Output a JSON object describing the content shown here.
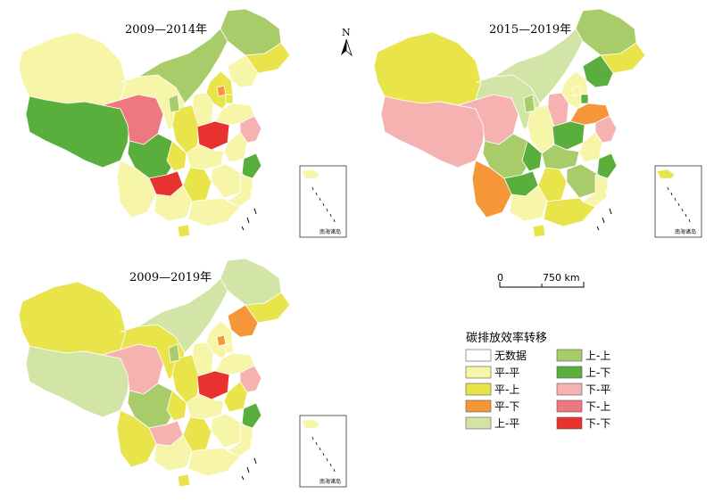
{
  "maps": [
    {
      "title": "2009—2014年",
      "inset_label": "南海诸岛",
      "provinces": {
        "xinjiang": "pp",
        "tibet": "us",
        "qinghai": "dn",
        "gansu": "pp",
        "inner_mongolia": "uu",
        "heilongjiang": "uu",
        "jilin": "pu",
        "liaoning": "pp",
        "hebei": "pu",
        "beijing": "pd",
        "tianjin": "pu",
        "shanxi": "pp",
        "shaanxi": "pu",
        "ningxia": "uu",
        "henan": "dd",
        "shandong": "pp",
        "sichuan": "us",
        "chongqing": "pu",
        "hubei": "pp",
        "anhui": "pp",
        "jiangsu": "du",
        "zhejiang": "us",
        "guizhou": "dd",
        "hunan": "pu",
        "jiangxi": "pp",
        "fujian": "pp",
        "yunnan": "pp",
        "guangxi": "pp",
        "guangdong": "pp",
        "hainan": "pu",
        "taiwan": "nd"
      }
    },
    {
      "title": "2015—2019年",
      "inset_label": "南海诸岛",
      "provinces": {
        "xinjiang": "pu",
        "tibet": "du",
        "qinghai": "du",
        "gansu": "up",
        "inner_mongolia": "up",
        "heilongjiang": "uu",
        "jilin": "pu",
        "liaoning": "us",
        "hebei": "pp",
        "beijing": "pp",
        "tianjin": "us",
        "shanxi": "du",
        "shaanxi": "pp",
        "ningxia": "uu",
        "henan": "us",
        "shandong": "pd",
        "sichuan": "uu",
        "chongqing": "us",
        "hubei": "uu",
        "anhui": "pp",
        "jiangsu": "du",
        "zhejiang": "us",
        "guizhou": "us",
        "hunan": "pu",
        "jiangxi": "uu",
        "fujian": "pp",
        "yunnan": "pd",
        "guangxi": "pp",
        "guangdong": "pu",
        "hainan": "pu",
        "taiwan": "nd"
      }
    },
    {
      "title": "2009—2019年",
      "inset_label": "南海诸岛",
      "provinces": {
        "xinjiang": "pu",
        "tibet": "up",
        "qinghai": "du",
        "gansu": "pu",
        "inner_mongolia": "up",
        "heilongjiang": "up",
        "jilin": "pu",
        "liaoning": "pd",
        "hebei": "pp",
        "beijing": "pd",
        "tianjin": "pp",
        "shanxi": "pp",
        "shaanxi": "pu",
        "ningxia": "uu",
        "henan": "dd",
        "shandong": "pp",
        "sichuan": "uu",
        "chongqing": "pu",
        "hubei": "pp",
        "anhui": "pu",
        "jiangsu": "du",
        "zhejiang": "us",
        "guizhou": "du",
        "hunan": "pu",
        "jiangxi": "pp",
        "fujian": "pp",
        "yunnan": "pu",
        "guangxi": "pp",
        "guangdong": "pp",
        "hainan": "pu",
        "taiwan": "nd"
      }
    }
  ],
  "north_arrow": {
    "label": "N"
  },
  "scale_bar": {
    "start_label": "0",
    "end_label": "750 km"
  },
  "legend": {
    "title": "碳排放效率转移",
    "items": [
      {
        "key": "nd",
        "label": "无数据",
        "color": "#ffffff"
      },
      {
        "key": "pp",
        "label": "平-平",
        "color": "#f6f5a8"
      },
      {
        "key": "pu",
        "label": "平-上",
        "color": "#e8e44a"
      },
      {
        "key": "pd",
        "label": "平-下",
        "color": "#f59638"
      },
      {
        "key": "up",
        "label": "上-平",
        "color": "#d2e5a7"
      },
      {
        "key": "uu",
        "label": "上-上",
        "color": "#a9cc6a"
      },
      {
        "key": "us",
        "label": "上-下",
        "color": "#5aae3c"
      },
      {
        "key": "du",
        "label": "下-平",
        "color": "#f6b2b0"
      },
      {
        "key": "dn",
        "label": "下-上",
        "color": "#ee7880"
      },
      {
        "key": "dd",
        "label": "下-下",
        "color": "#e8322f"
      }
    ]
  }
}
